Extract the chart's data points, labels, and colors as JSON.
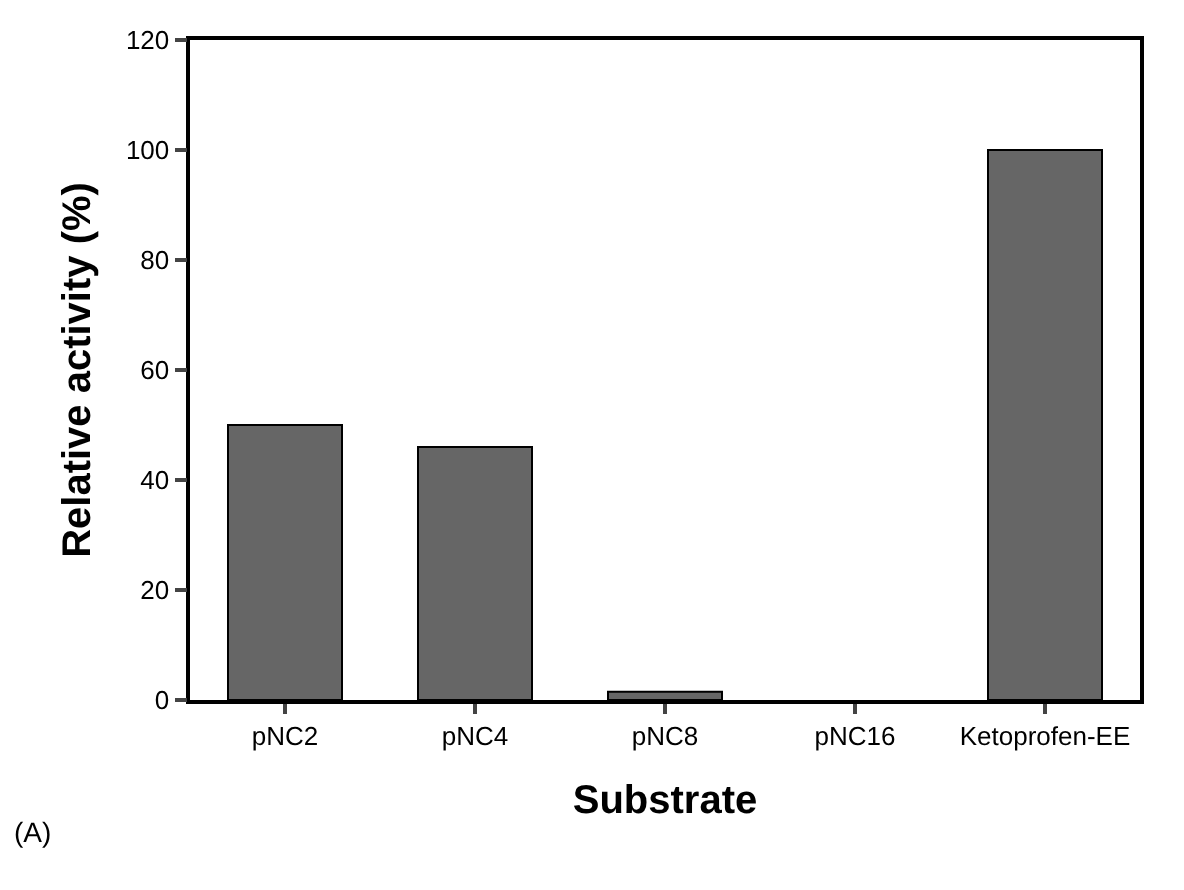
{
  "chart_data": {
    "type": "bar",
    "xlabel": "Substrate",
    "ylabel": "Relative activity (%)",
    "categories": [
      "pNC2",
      "pNC4",
      "pNC8",
      "pNC16",
      "Ketoprofen-EE"
    ],
    "values": [
      50,
      46,
      1.5,
      0,
      100
    ],
    "color": "#666666",
    "ylim": [
      0,
      120
    ],
    "yticks": [
      0,
      20,
      40,
      60,
      80,
      100,
      120
    ],
    "grid": false,
    "annotations": [
      "(A)"
    ]
  }
}
